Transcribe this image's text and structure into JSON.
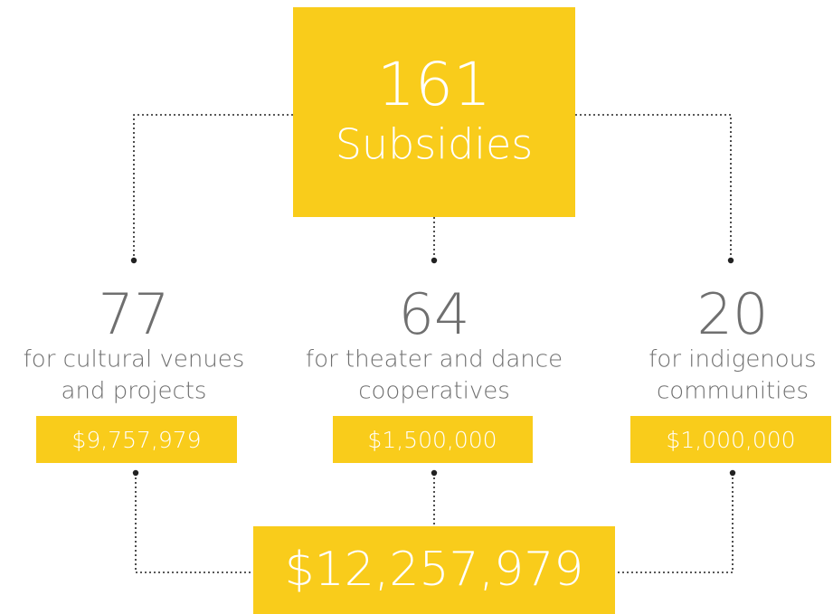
{
  "total_subsidies": {
    "count": "161",
    "label": "Subsidies"
  },
  "items": [
    {
      "count": "77",
      "description": [
        "for cultural venues",
        "and projects"
      ],
      "amount": "$9,757,979"
    },
    {
      "count": "64",
      "description": [
        "for theater and dance",
        "cooperatives"
      ],
      "amount": "$1,500,000"
    },
    {
      "count": "20",
      "description": [
        "for indigenous",
        "communities"
      ],
      "amount": "$1,000,000"
    }
  ],
  "total_amount": "$12,257,979"
}
